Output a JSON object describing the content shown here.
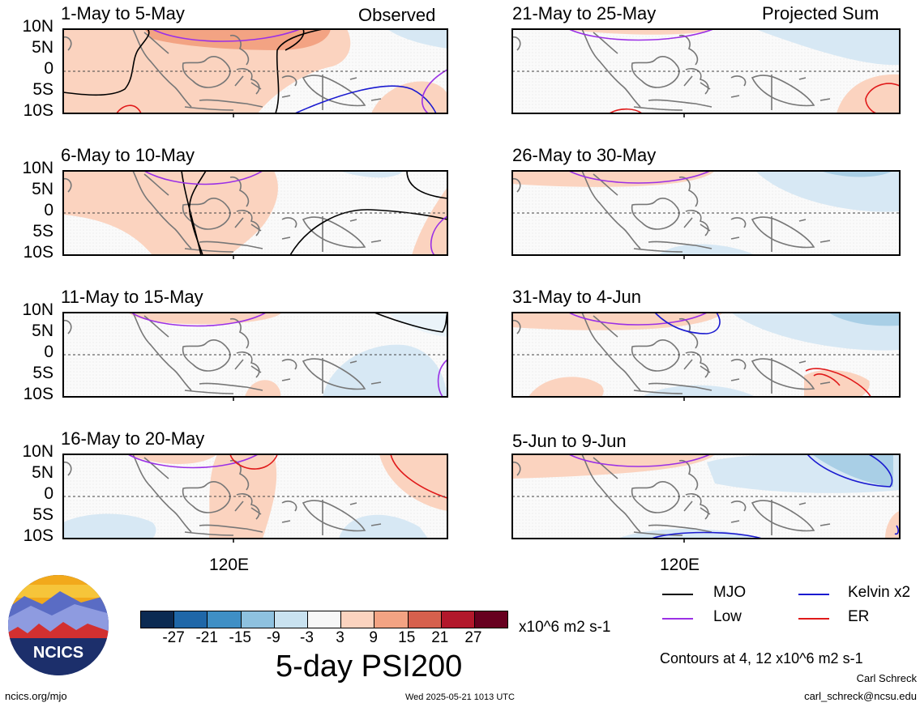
{
  "labels": {
    "observed": "Observed",
    "projected": "Projected Sum",
    "y_ticks": [
      "10N",
      "5N",
      "0",
      "5S",
      "10S"
    ],
    "x_tick": "120E"
  },
  "panels": [
    {
      "id": "p1",
      "title": "1-May to 5-May",
      "column": "observed"
    },
    {
      "id": "p2",
      "title": "6-May to 10-May",
      "column": "observed"
    },
    {
      "id": "p3",
      "title": "11-May to 15-May",
      "column": "observed"
    },
    {
      "id": "p4",
      "title": "16-May to 20-May",
      "column": "observed"
    },
    {
      "id": "p5",
      "title": "21-May to 25-May",
      "column": "projected"
    },
    {
      "id": "p6",
      "title": "26-May to 30-May",
      "column": "projected"
    },
    {
      "id": "p7",
      "title": "31-May to 4-Jun",
      "column": "projected"
    },
    {
      "id": "p8",
      "title": "5-Jun to 9-Jun",
      "column": "projected"
    }
  ],
  "legend": {
    "items": [
      {
        "label": "MJO",
        "color": "#000000"
      },
      {
        "label": "Kelvin x2",
        "color": "#1a1ad0"
      },
      {
        "label": "Low",
        "color": "#9b30e6"
      },
      {
        "label": "ER",
        "color": "#e01a1a"
      }
    ],
    "contours_note": "Contours at 4, 12 x10^6 m2 s-1"
  },
  "colorbar": {
    "colors": [
      "#0b2a52",
      "#1f67a8",
      "#3f8fc5",
      "#8ec1df",
      "#c9e2f0",
      "#f7f7f7",
      "#fbd3bf",
      "#f3a383",
      "#d6604d",
      "#b2182b",
      "#67001f"
    ],
    "ticks": [
      "-27",
      "-21",
      "-15",
      "-9",
      "-3",
      "3",
      "9",
      "15",
      "21",
      "27"
    ],
    "units": "x10^6 m2 s-1"
  },
  "main_title": "5-day PSI200",
  "logo": {
    "text": "NCICS"
  },
  "footer": {
    "url": "ncics.org/mjo",
    "timestamp": "Wed 2025-05-21 1013 UTC",
    "author": "Carl Schreck",
    "email": "carl_schreck@ncsu.edu"
  }
}
